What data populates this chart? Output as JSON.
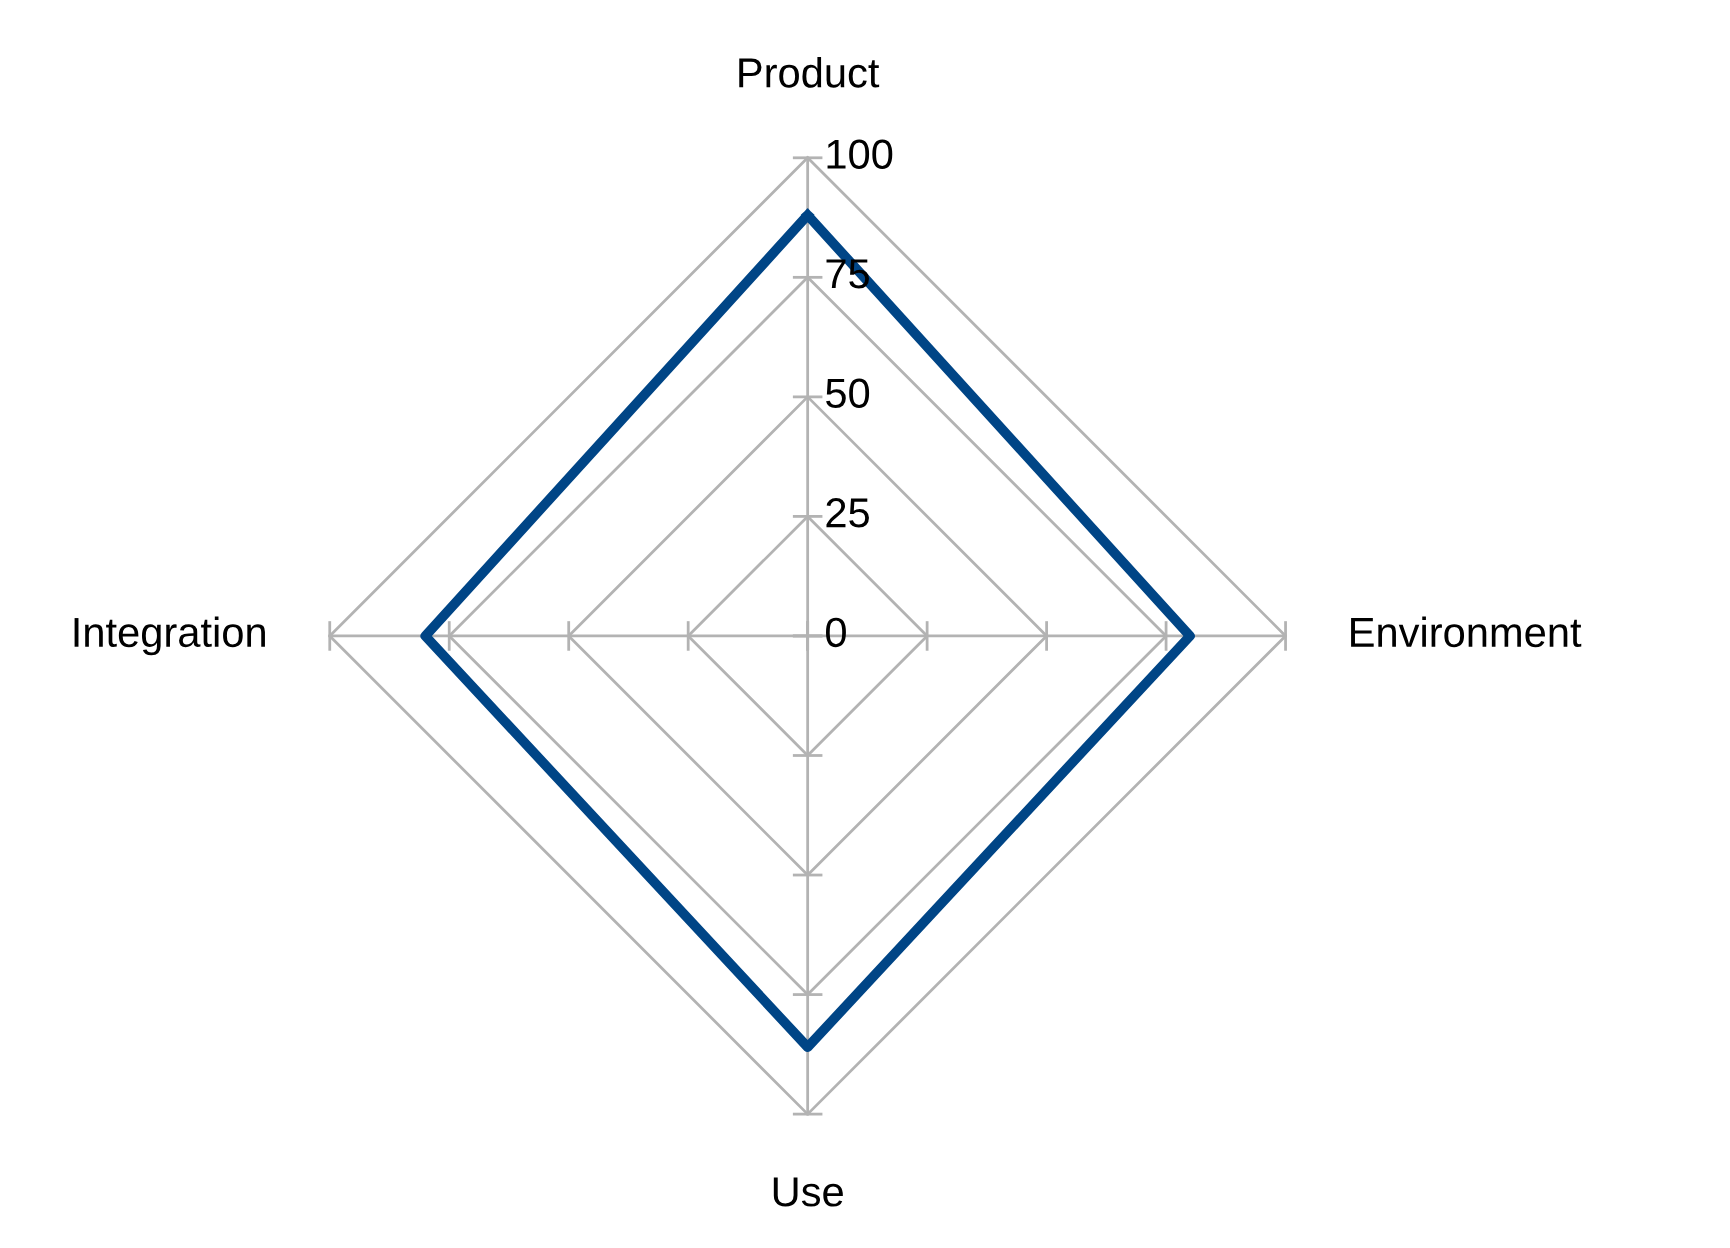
{
  "chart_data": {
    "type": "radar",
    "categories": [
      "Product",
      "Environment",
      "Use",
      "Integration"
    ],
    "series": [
      {
        "color": "#004586",
        "values": [
          88,
          80,
          86,
          80
        ]
      }
    ],
    "ylim": [
      0,
      100
    ],
    "yticks": [
      0,
      25,
      50,
      75,
      100
    ],
    "grid": true,
    "marker": "none",
    "line_style": "solid"
  }
}
